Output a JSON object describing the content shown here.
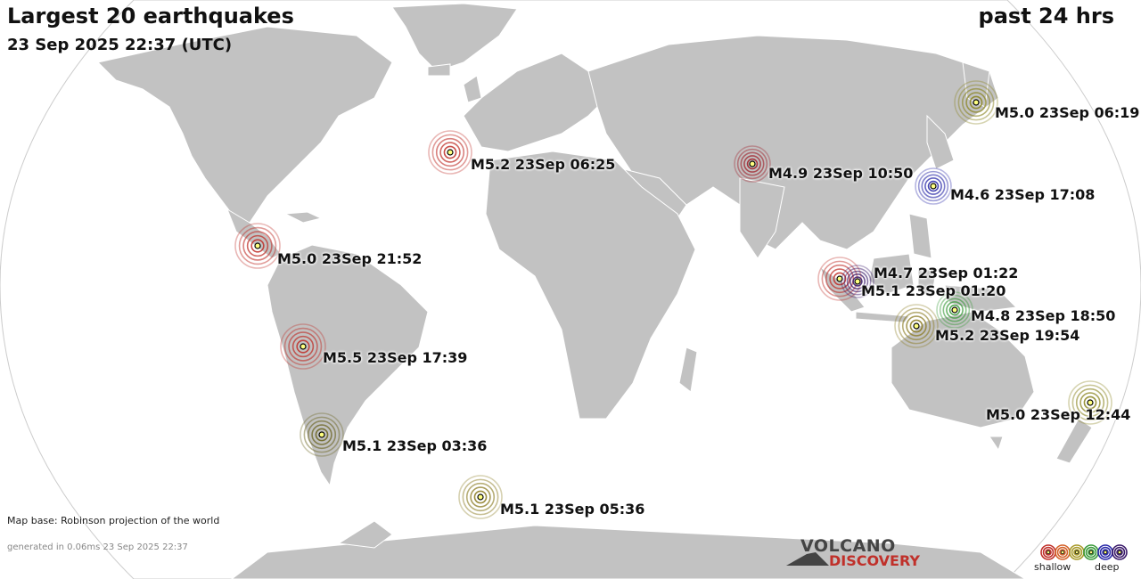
{
  "header": {
    "title": "Largest 20 earthquakes",
    "timestamp": "23 Sep 2025 22:37 (UTC)",
    "period": "past 24 hrs"
  },
  "footer": {
    "map_base": "Map base: Robinson projection of the world",
    "generated": "generated in 0.06ms 23 Sep 2025 22:37"
  },
  "logo": {
    "line1": "VOLCANO",
    "line2": "DISCOVERY"
  },
  "legend": {
    "shallow_label": "shallow",
    "deep_label": "deep",
    "depth_colors": [
      "#c0302a",
      "#d4622a",
      "#a89a2a",
      "#3a9a3a",
      "#2a2aa8",
      "#3a1a6a"
    ]
  },
  "colors": {
    "ocean": "#ffffff",
    "land": "#c2c2c2",
    "coast": "#ffffff"
  },
  "earthquakes": [
    {
      "label": "M5.0 23Sep 06:19",
      "depth_color": "#8a8420"
    },
    {
      "label": "M5.2 23Sep 06:25",
      "depth_color": "#c0302a"
    },
    {
      "label": "M4.9 23Sep 10:50",
      "depth_color": "#a0202a"
    },
    {
      "label": "M4.6 23Sep 17:08",
      "depth_color": "#2a2aa8"
    },
    {
      "label": "M5.0 23Sep 21:52",
      "depth_color": "#c0302a"
    },
    {
      "label": "M4.7 23Sep 01:22",
      "depth_color": "#c0302a"
    },
    {
      "label": "M5.1 23Sep 01:20",
      "depth_color": "#3a1a6a"
    },
    {
      "label": "M4.8 23Sep 18:50",
      "depth_color": "#3a9a3a"
    },
    {
      "label": "M5.2 23Sep 19:54",
      "depth_color": "#8a7a20"
    },
    {
      "label": "M5.5 23Sep 17:39",
      "depth_color": "#c0302a"
    },
    {
      "label": "M5.0 23Sep 12:44",
      "depth_color": "#8a8420"
    },
    {
      "label": "M5.1 23Sep 03:36",
      "depth_color": "#6a6420"
    },
    {
      "label": "M5.1 23Sep 05:36",
      "depth_color": "#8a7a20"
    }
  ]
}
